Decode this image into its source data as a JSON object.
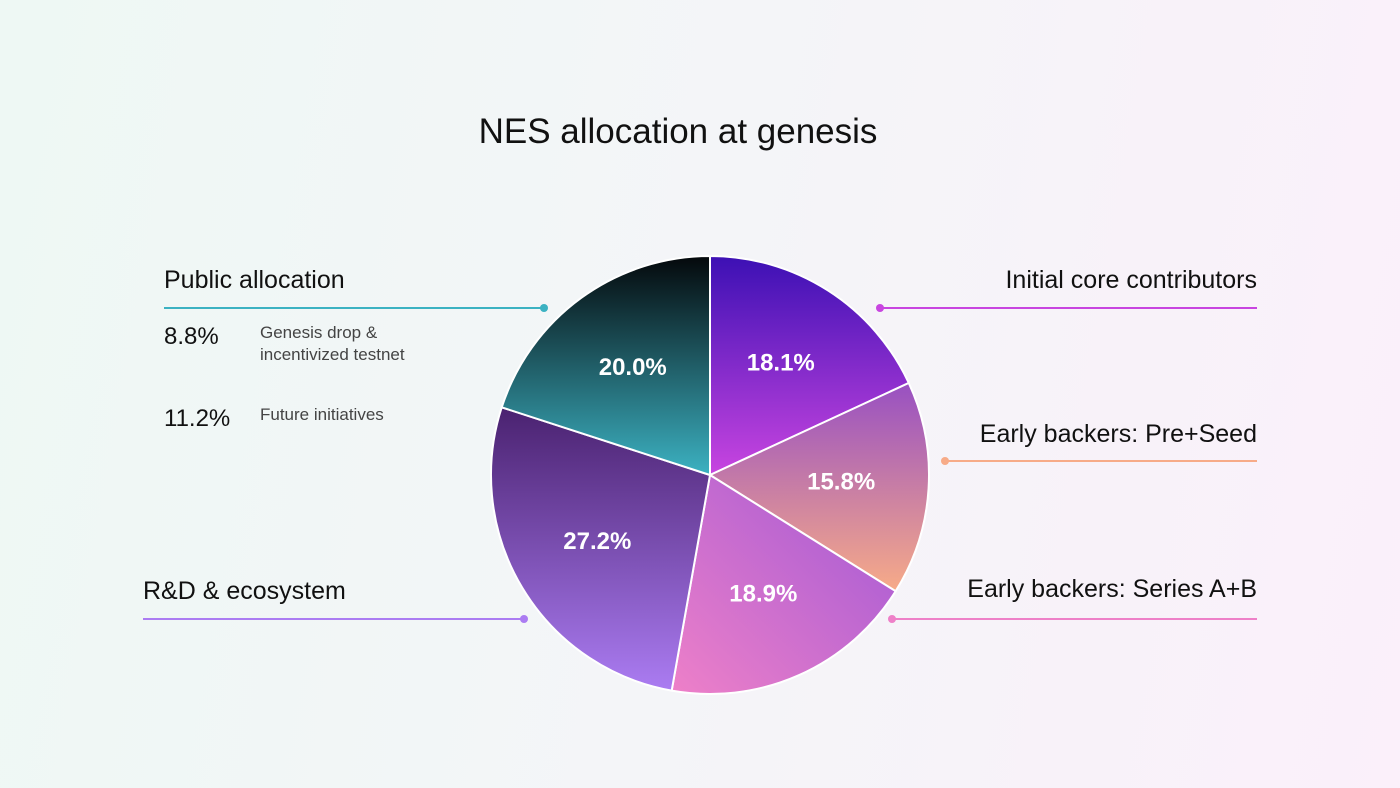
{
  "chart_data": {
    "type": "pie",
    "title": "NES allocation at genesis",
    "categories": [
      "Initial core contributors",
      "Early backers: Pre+Seed",
      "Early backers: Series A+B",
      "R&D & ecosystem",
      "Public allocation"
    ],
    "values": [
      18.1,
      15.8,
      18.9,
      27.2,
      20.0
    ],
    "value_labels": [
      "18.1%",
      "15.8%",
      "18.9%",
      "27.2%",
      "20.0%"
    ],
    "gradients": [
      [
        "#3c10b4",
        "#c845e0"
      ],
      [
        "#9850c2",
        "#f7ab88"
      ],
      [
        "#a058d6",
        "#ee80c8"
      ],
      [
        "#4a2270",
        "#ab7cf2"
      ],
      [
        "#04080b",
        "#3cb2c2"
      ]
    ],
    "breakdown": {
      "values": [
        8.8,
        11.2
      ],
      "value_labels": [
        "8.8%",
        "11.2%"
      ],
      "names": [
        "Genesis drop & incentivized testnet",
        "Future initiatives"
      ]
    }
  }
}
